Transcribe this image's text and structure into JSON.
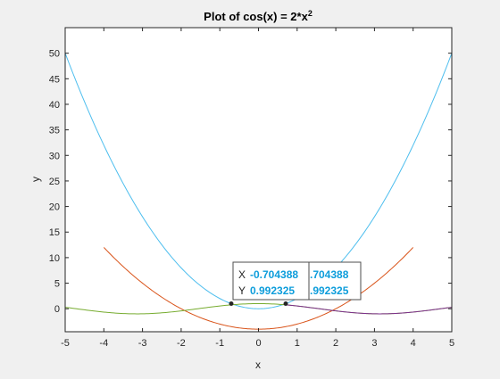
{
  "chart_data": {
    "type": "line",
    "title": "Plot of cos(x) = 2*x",
    "title_superscript": "2",
    "xlabel": "x",
    "ylabel": "y",
    "xlim": [
      -5,
      5
    ],
    "ylim": [
      -4.5,
      55
    ],
    "xticks": [
      -5,
      -4,
      -3,
      -2,
      -1,
      0,
      1,
      2,
      3,
      4,
      5
    ],
    "yticks": [
      0,
      5,
      10,
      15,
      20,
      25,
      30,
      35,
      40,
      45,
      50
    ],
    "grid": false,
    "series": [
      {
        "color": "#4dbeee",
        "expr": "2*x^2",
        "x_range": [
          -5,
          5
        ]
      },
      {
        "color": "#d95319",
        "expr": "x^2-4",
        "x_range": [
          -4,
          4
        ]
      },
      {
        "color": "#77ac30",
        "expr": "cos(x)",
        "x_range": [
          -5,
          5
        ]
      },
      {
        "color": "#7e2f8e",
        "expr": "cos(x)",
        "x_range": [
          0.704388,
          5
        ]
      }
    ],
    "markers": [
      {
        "x": -0.704388,
        "y": 0.992325
      },
      {
        "x": 0.704388,
        "y": 0.992325
      }
    ],
    "datatips": [
      {
        "x_label": "X",
        "y_label": "Y",
        "x_value": "-0.704388",
        "y_value": "0.992325",
        "visible_x": "-0.704388",
        "visible_y": "0.992325"
      },
      {
        "x_label": "X",
        "y_label": "Y",
        "x_value": "0.704388",
        "y_value": "0.992325",
        "visible_x": ".704388",
        "visible_y": ".992325"
      }
    ]
  }
}
